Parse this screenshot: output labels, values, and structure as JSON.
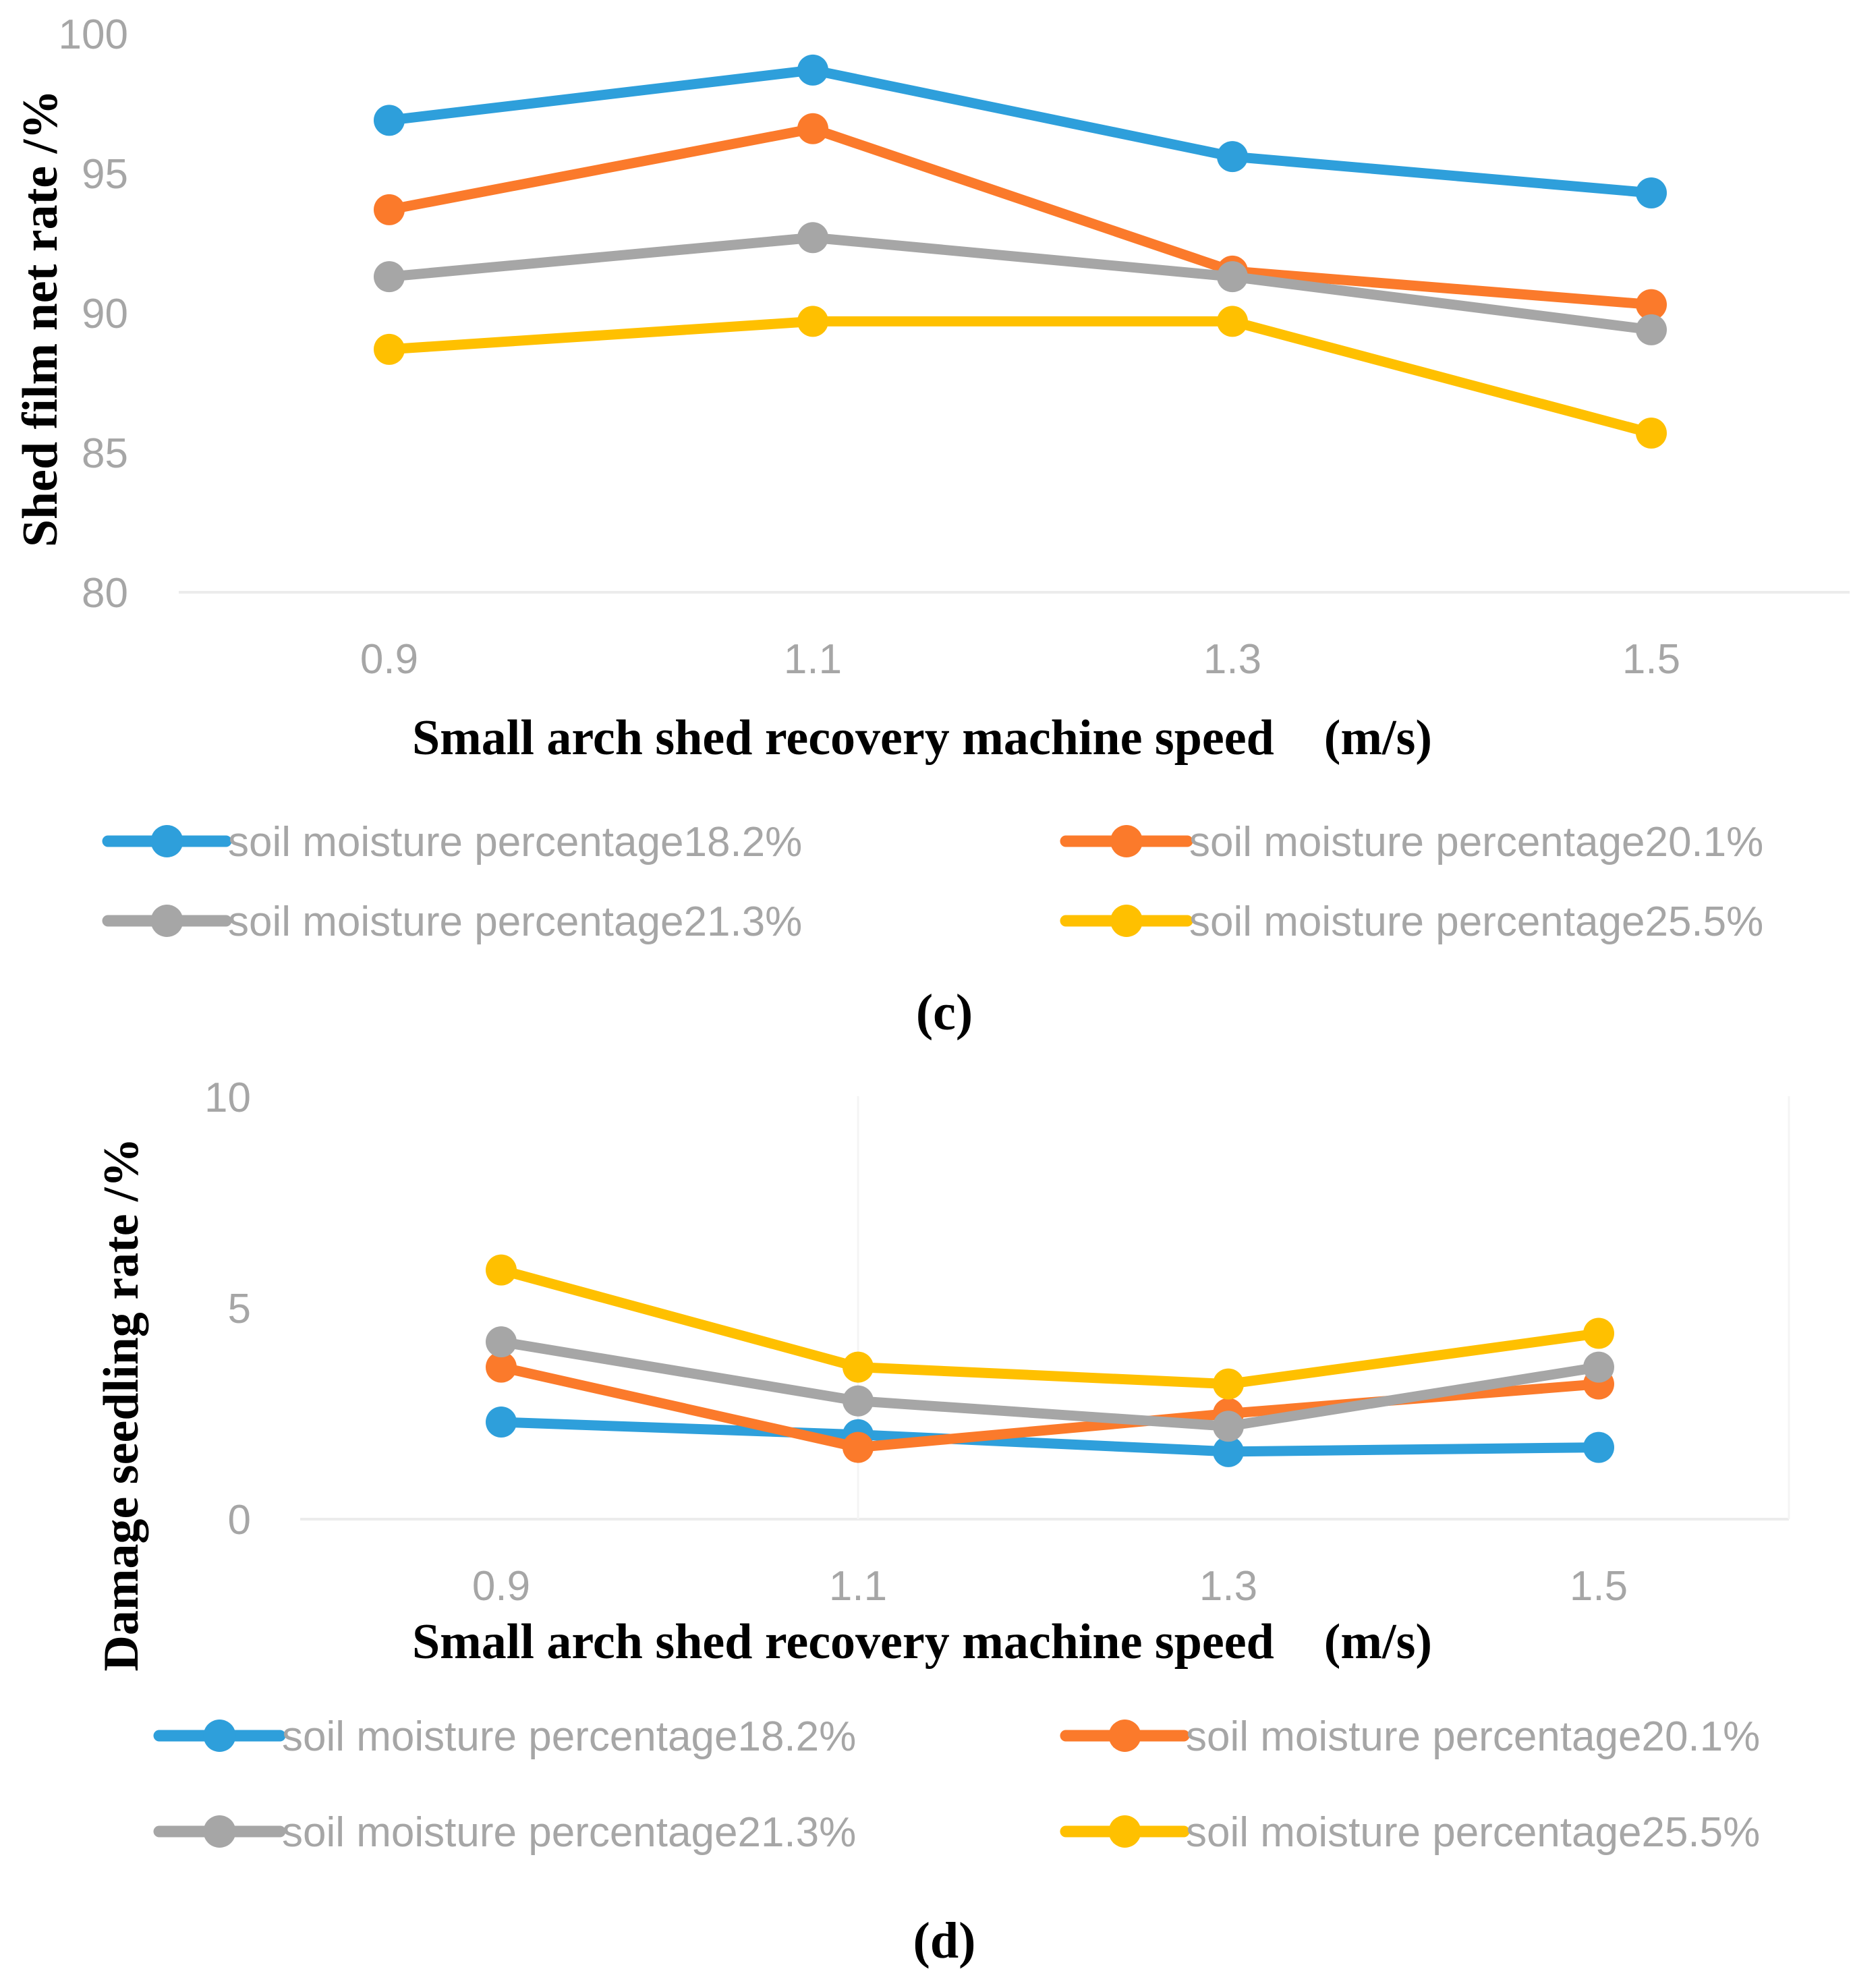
{
  "colors": {
    "series": [
      "#2e9fdb",
      "#fb7a2b",
      "#a6a6a6",
      "#ffc000"
    ],
    "grid": "#ececec",
    "tick": "#a6a6a6"
  },
  "chart_data": [
    {
      "id": "c",
      "type": "line",
      "panel_label": "(c)",
      "ylabel": "Shed film net rate /%",
      "xlabel": "Small arch shed recovery machine speed　(m/s)",
      "categories": [
        "0.9",
        "1.1",
        "1.3",
        "1.5"
      ],
      "ylim": [
        80,
        100
      ],
      "yticks": [
        "100",
        "95",
        "90",
        "85",
        "80"
      ],
      "grid": false,
      "legend": "bottom",
      "series": [
        {
          "name": "soil moisture percentage18.2%",
          "values": [
            96.9,
            98.7,
            95.6,
            94.3
          ]
        },
        {
          "name": "soil moisture percentage20.1%",
          "values": [
            93.7,
            96.6,
            91.5,
            90.3
          ]
        },
        {
          "name": "soil moisture percentage21.3%",
          "values": [
            91.3,
            92.7,
            91.3,
            89.4
          ]
        },
        {
          "name": "soil moisture percentage25.5%",
          "values": [
            88.7,
            89.7,
            89.7,
            85.7
          ]
        }
      ]
    },
    {
      "id": "d",
      "type": "line",
      "panel_label": "(d)",
      "ylabel": "Damage seedling rate /%",
      "xlabel": "Small arch shed recovery machine speed　(m/s)",
      "categories": [
        "0.9",
        "1.1",
        "1.3",
        "1.5"
      ],
      "ylim": [
        0,
        10
      ],
      "yticks": [
        "10",
        "5",
        "0"
      ],
      "grid": true,
      "legend": "bottom",
      "series": [
        {
          "name": "soil moisture percentage18.2%",
          "values": [
            2.3,
            2.0,
            1.6,
            1.7
          ]
        },
        {
          "name": "soil moisture percentage20.1%",
          "values": [
            3.6,
            1.7,
            2.5,
            3.2
          ]
        },
        {
          "name": "soil moisture percentage21.3%",
          "values": [
            4.2,
            2.8,
            2.2,
            3.6
          ]
        },
        {
          "name": "soil moisture percentage25.5%",
          "values": [
            5.9,
            3.6,
            3.2,
            4.4
          ]
        }
      ]
    }
  ]
}
